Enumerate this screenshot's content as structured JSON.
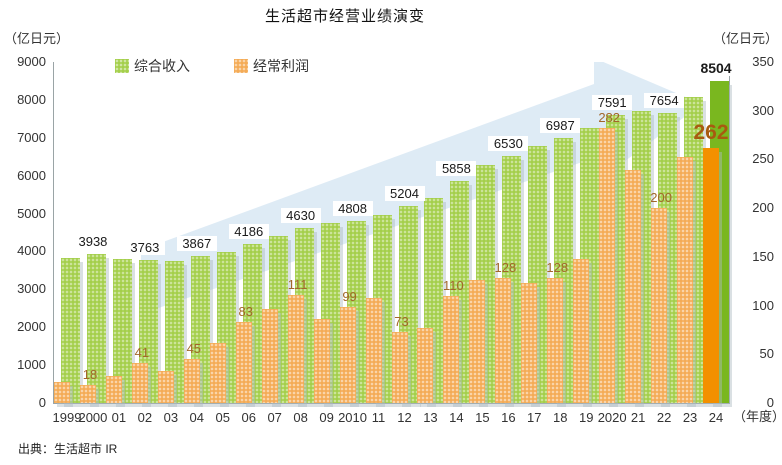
{
  "title": "生活超市经营业绩演变",
  "source": "出典：生活超市 IR",
  "legend": {
    "items": [
      {
        "label": "综合收入",
        "color": "#a4cf4b"
      },
      {
        "label": "经常利润",
        "color": "#f4ab56"
      }
    ]
  },
  "left_axis": {
    "unit": "（亿日元）",
    "max": 9000,
    "ticks": [
      9000,
      8000,
      7000,
      6000,
      5000,
      4000,
      3000,
      2000,
      1000,
      0
    ]
  },
  "right_axis": {
    "unit": "（亿日元）",
    "max": 350,
    "ticks": [
      350,
      300,
      250,
      200,
      150,
      100,
      50,
      0
    ]
  },
  "x_axis": {
    "suffix": "（年度）"
  },
  "colors": {
    "green_bar": "#a4cf4b",
    "green_bar_highlight": "#7ab71f",
    "orange_bar": "#f4ab56",
    "orange_bar_highlight": "#f39000",
    "profit_label": "#a2672b",
    "highlight_profit_label": "#a85a10",
    "arrow_watermark": "#d3e4f2",
    "axis_line": "#9aa4a6"
  },
  "chart_data": {
    "type": "bar",
    "title": "生活超市经营业绩演变",
    "categories": [
      "1999",
      "2000",
      "01",
      "02",
      "03",
      "04",
      "05",
      "06",
      "07",
      "08",
      "09",
      "2010",
      "11",
      "12",
      "13",
      "14",
      "15",
      "16",
      "17",
      "18",
      "19",
      "2020",
      "21",
      "22",
      "23",
      "24"
    ],
    "series": [
      {
        "name": "综合收入",
        "axis": "left",
        "values": [
          3820,
          3938,
          3800,
          3763,
          3740,
          3867,
          3990,
          4186,
          4400,
          4630,
          4760,
          4808,
          4950,
          5204,
          5400,
          5858,
          6280,
          6530,
          6780,
          6987,
          7250,
          7591,
          7700,
          7654,
          8080,
          8504
        ]
      },
      {
        "name": "经常利润",
        "axis": "right",
        "values": [
          22,
          18,
          28,
          41,
          33,
          45,
          62,
          83,
          97,
          111,
          86,
          99,
          108,
          73,
          77,
          110,
          126,
          128,
          123,
          128,
          148,
          282,
          239,
          200,
          252,
          262
        ]
      }
    ],
    "label_indices": [
      1,
      3,
      5,
      7,
      9,
      11,
      13,
      15,
      17,
      19,
      21,
      23,
      25
    ],
    "highlight_index": 25,
    "left_ylim": [
      0,
      9000
    ],
    "right_ylim": [
      0,
      350
    ],
    "grid": false,
    "legend_position": "top-left"
  }
}
